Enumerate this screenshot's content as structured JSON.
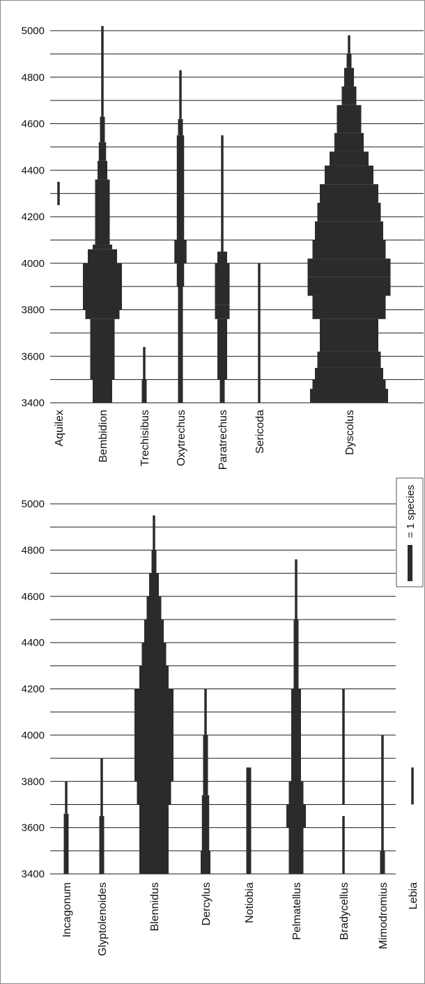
{
  "colors": {
    "bar": "#2b2b2b",
    "grid": "#1a1a1a",
    "text": "#111111",
    "background": "#ffffff"
  },
  "legend": {
    "label": "= 1 species"
  },
  "chart_data": [
    {
      "type": "bar",
      "orientation": "vertical-range-profile",
      "ylim": [
        3400,
        5000
      ],
      "yticks": [
        3400,
        3600,
        3800,
        4000,
        4200,
        4400,
        4600,
        4800,
        5000
      ],
      "grid": true,
      "genera": [
        {
          "name": "Aquilex",
          "profile": [
            [
              4250,
              4350,
              1
            ]
          ]
        },
        {
          "name": "Bembidion",
          "profile": [
            [
              3400,
              3500,
              8
            ],
            [
              3500,
              3760,
              10
            ],
            [
              3760,
              3800,
              14
            ],
            [
              3800,
              4000,
              16
            ],
            [
              4000,
              4060,
              12
            ],
            [
              4060,
              4080,
              8
            ],
            [
              4080,
              4360,
              6
            ],
            [
              4360,
              4440,
              4
            ],
            [
              4440,
              4520,
              3
            ],
            [
              4520,
              4630,
              2
            ],
            [
              4630,
              4760,
              1
            ],
            [
              4760,
              5020,
              1
            ]
          ]
        },
        {
          "name": "Trechisibus",
          "profile": [
            [
              3400,
              3500,
              2
            ],
            [
              3500,
              3640,
              1
            ]
          ]
        },
        {
          "name": "Oxytrechus",
          "profile": [
            [
              3400,
              3900,
              2
            ],
            [
              3900,
              4000,
              3
            ],
            [
              4000,
              4100,
              5
            ],
            [
              4100,
              4550,
              3
            ],
            [
              4550,
              4620,
              2
            ],
            [
              4620,
              4830,
              1
            ]
          ]
        },
        {
          "name": "Paratrechus",
          "profile": [
            [
              3400,
              3500,
              2
            ],
            [
              3500,
              3760,
              4
            ],
            [
              3760,
              3820,
              6
            ],
            [
              3820,
              4000,
              6
            ],
            [
              4000,
              4050,
              4
            ],
            [
              4050,
              4550,
              1
            ]
          ]
        },
        {
          "name": "Sericoda",
          "profile": [
            [
              3400,
              4000,
              1
            ]
          ]
        },
        {
          "name": "Dyscolus",
          "profile": [
            [
              3400,
              3460,
              32
            ],
            [
              3460,
              3500,
              30
            ],
            [
              3500,
              3550,
              28
            ],
            [
              3550,
              3620,
              26
            ],
            [
              3620,
              3760,
              24
            ],
            [
              3760,
              3860,
              30
            ],
            [
              3860,
              3940,
              34
            ],
            [
              3940,
              4020,
              34
            ],
            [
              4020,
              4100,
              30
            ],
            [
              4100,
              4180,
              28
            ],
            [
              4180,
              4260,
              26
            ],
            [
              4260,
              4340,
              24
            ],
            [
              4340,
              4420,
              20
            ],
            [
              4420,
              4480,
              16
            ],
            [
              4480,
              4560,
              12
            ],
            [
              4560,
              4680,
              10
            ],
            [
              4680,
              4760,
              6
            ],
            [
              4760,
              4840,
              4
            ],
            [
              4840,
              4900,
              2
            ],
            [
              4900,
              4980,
              1
            ]
          ]
        }
      ]
    },
    {
      "type": "bar",
      "orientation": "vertical-range-profile",
      "ylim": [
        3400,
        5000
      ],
      "yticks": [
        3400,
        3600,
        3800,
        4000,
        4200,
        4400,
        4600,
        4800,
        5000
      ],
      "grid": true,
      "genera": [
        {
          "name": "Incagonum",
          "profile": [
            [
              3400,
              3660,
              2
            ],
            [
              3660,
              3800,
              1
            ]
          ]
        },
        {
          "name": "Glyptolenoides",
          "profile": [
            [
              3400,
              3650,
              2
            ],
            [
              3650,
              3900,
              1
            ]
          ]
        },
        {
          "name": "Blennidus",
          "profile": [
            [
              3400,
              3700,
              12
            ],
            [
              3700,
              3800,
              14
            ],
            [
              3800,
              4200,
              16
            ],
            [
              4200,
              4300,
              12
            ],
            [
              4300,
              4400,
              10
            ],
            [
              4400,
              4500,
              8
            ],
            [
              4500,
              4600,
              6
            ],
            [
              4600,
              4700,
              4
            ],
            [
              4700,
              4800,
              2
            ],
            [
              4800,
              4950,
              1
            ]
          ]
        },
        {
          "name": "Dercylus",
          "profile": [
            [
              3400,
              3500,
              4
            ],
            [
              3500,
              3740,
              3
            ],
            [
              3740,
              4000,
              2
            ],
            [
              4000,
              4200,
              1
            ]
          ]
        },
        {
          "name": "Notiobia",
          "profile": [
            [
              3400,
              3860,
              2
            ]
          ]
        },
        {
          "name": "Pelmatellus",
          "profile": [
            [
              3400,
              3600,
              6
            ],
            [
              3600,
              3700,
              8
            ],
            [
              3700,
              3800,
              6
            ],
            [
              3800,
              4200,
              4
            ],
            [
              4200,
              4500,
              2
            ],
            [
              4500,
              4760,
              1
            ]
          ]
        },
        {
          "name": "Bradycellus",
          "profile": [
            [
              3400,
              3650,
              1
            ],
            [
              3700,
              4200,
              1
            ]
          ]
        },
        {
          "name": "Mimodromius",
          "profile": [
            [
              3400,
              3500,
              2
            ],
            [
              3500,
              4000,
              1
            ]
          ]
        },
        {
          "name": "Lebia",
          "profile": [
            [
              3700,
              3860,
              1
            ]
          ]
        }
      ]
    }
  ]
}
